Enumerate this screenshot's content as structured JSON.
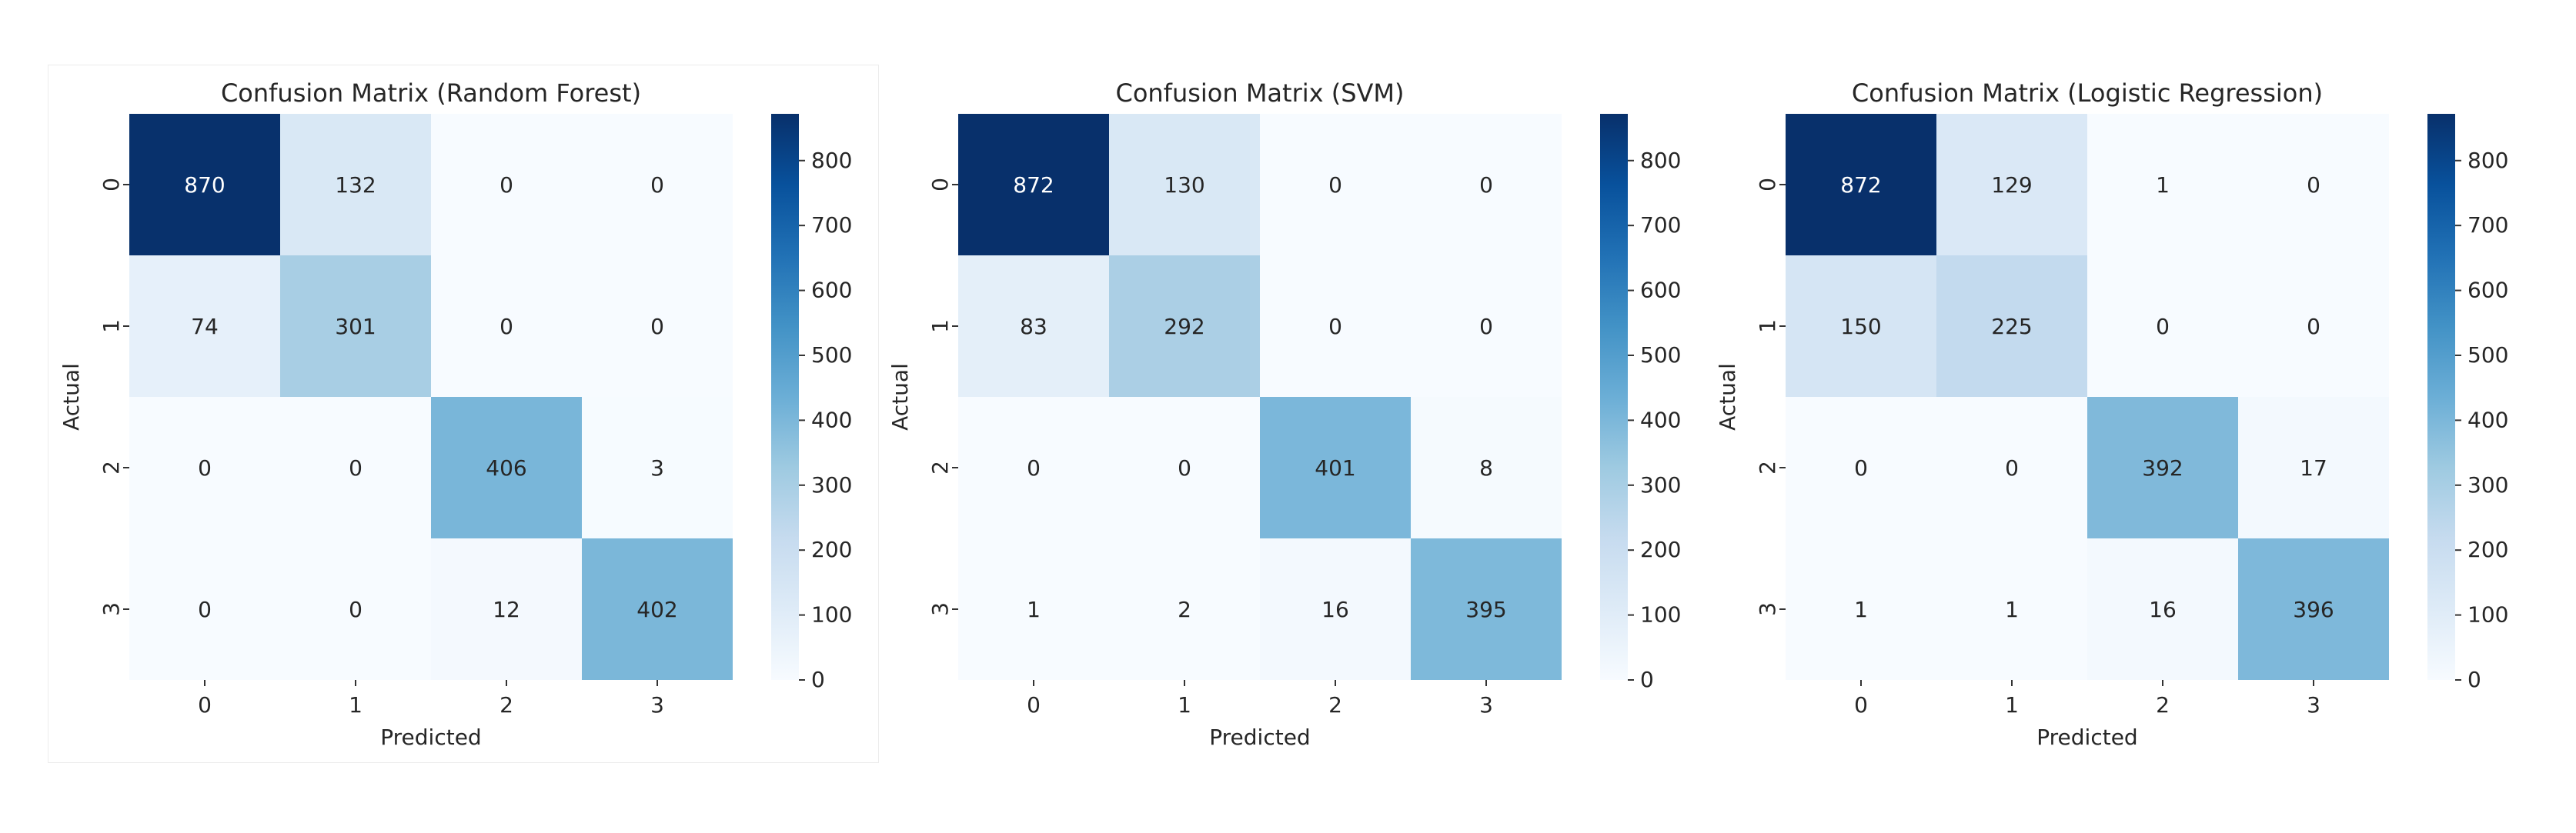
{
  "colors": {
    "low": "#f7fbff",
    "high": "#08306b",
    "text_dark": "#262626",
    "text_light": "#ffffff"
  },
  "chart_data": [
    {
      "type": "heatmap",
      "title": "Confusion Matrix (Random Forest)",
      "xlabel": "Predicted",
      "ylabel": "Actual",
      "x_ticks": [
        "0",
        "1",
        "2",
        "3"
      ],
      "y_ticks": [
        "0",
        "1",
        "2",
        "3"
      ],
      "values": [
        [
          870,
          132,
          0,
          0
        ],
        [
          74,
          301,
          0,
          0
        ],
        [
          0,
          0,
          406,
          3
        ],
        [
          0,
          0,
          12,
          402
        ]
      ],
      "colorbar": {
        "range": [
          0,
          872
        ],
        "ticks": [
          "0",
          "100",
          "200",
          "300",
          "400",
          "500",
          "600",
          "700",
          "800"
        ],
        "colormap": "Blues"
      }
    },
    {
      "type": "heatmap",
      "title": "Confusion Matrix (SVM)",
      "xlabel": "Predicted",
      "ylabel": "Actual",
      "x_ticks": [
        "0",
        "1",
        "2",
        "3"
      ],
      "y_ticks": [
        "0",
        "1",
        "2",
        "3"
      ],
      "values": [
        [
          872,
          130,
          0,
          0
        ],
        [
          83,
          292,
          0,
          0
        ],
        [
          0,
          0,
          401,
          8
        ],
        [
          1,
          2,
          16,
          395
        ]
      ],
      "colorbar": {
        "range": [
          0,
          872
        ],
        "ticks": [
          "0",
          "100",
          "200",
          "300",
          "400",
          "500",
          "600",
          "700",
          "800"
        ],
        "colormap": "Blues"
      }
    },
    {
      "type": "heatmap",
      "title": "Confusion Matrix (Logistic Regression)",
      "xlabel": "Predicted",
      "ylabel": "Actual",
      "x_ticks": [
        "0",
        "1",
        "2",
        "3"
      ],
      "y_ticks": [
        "0",
        "1",
        "2",
        "3"
      ],
      "values": [
        [
          872,
          129,
          1,
          0
        ],
        [
          150,
          225,
          0,
          0
        ],
        [
          0,
          0,
          392,
          17
        ],
        [
          1,
          1,
          16,
          396
        ]
      ],
      "colorbar": {
        "range": [
          0,
          872
        ],
        "ticks": [
          "0",
          "100",
          "200",
          "300",
          "400",
          "500",
          "600",
          "700",
          "800"
        ],
        "colormap": "Blues"
      }
    }
  ]
}
